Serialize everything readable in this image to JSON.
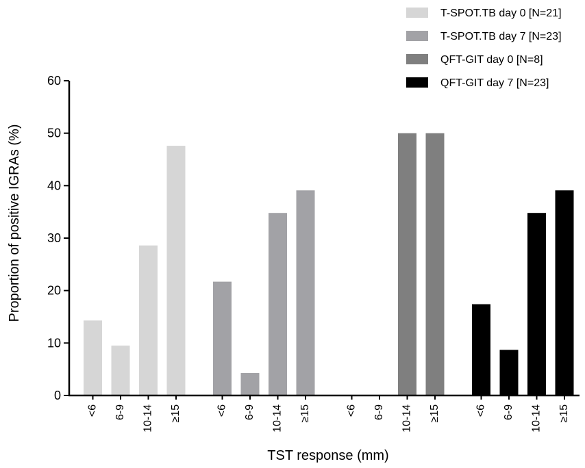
{
  "chart_data": {
    "type": "bar",
    "title": "",
    "xlabel": "TST response (mm)",
    "ylabel": "Proportion of positive IGRAs (%)",
    "ylim": [
      0,
      60
    ],
    "yticks": [
      0,
      10,
      20,
      30,
      40,
      50,
      60
    ],
    "grid": false,
    "legend_position": "top-right",
    "categories": [
      "<6",
      "6-9",
      "10-14",
      "≥15"
    ],
    "series": [
      {
        "name": "T-SPOT.TB day 0 [N=21]",
        "color": "#d6d6d6",
        "values": [
          14.3,
          9.5,
          28.6,
          47.6
        ]
      },
      {
        "name": "T-SPOT.TB day 7 [N=23]",
        "color": "#a2a2a6",
        "values": [
          21.7,
          4.3,
          34.8,
          39.1
        ]
      },
      {
        "name": "QFT-GIT day 0 [N=8]",
        "color": "#7f7f7f",
        "values": [
          0,
          0,
          50,
          50
        ]
      },
      {
        "name": "QFT-GIT day 7 [N=23]",
        "color": "#000000",
        "values": [
          17.4,
          8.7,
          34.8,
          39.1
        ]
      }
    ]
  }
}
